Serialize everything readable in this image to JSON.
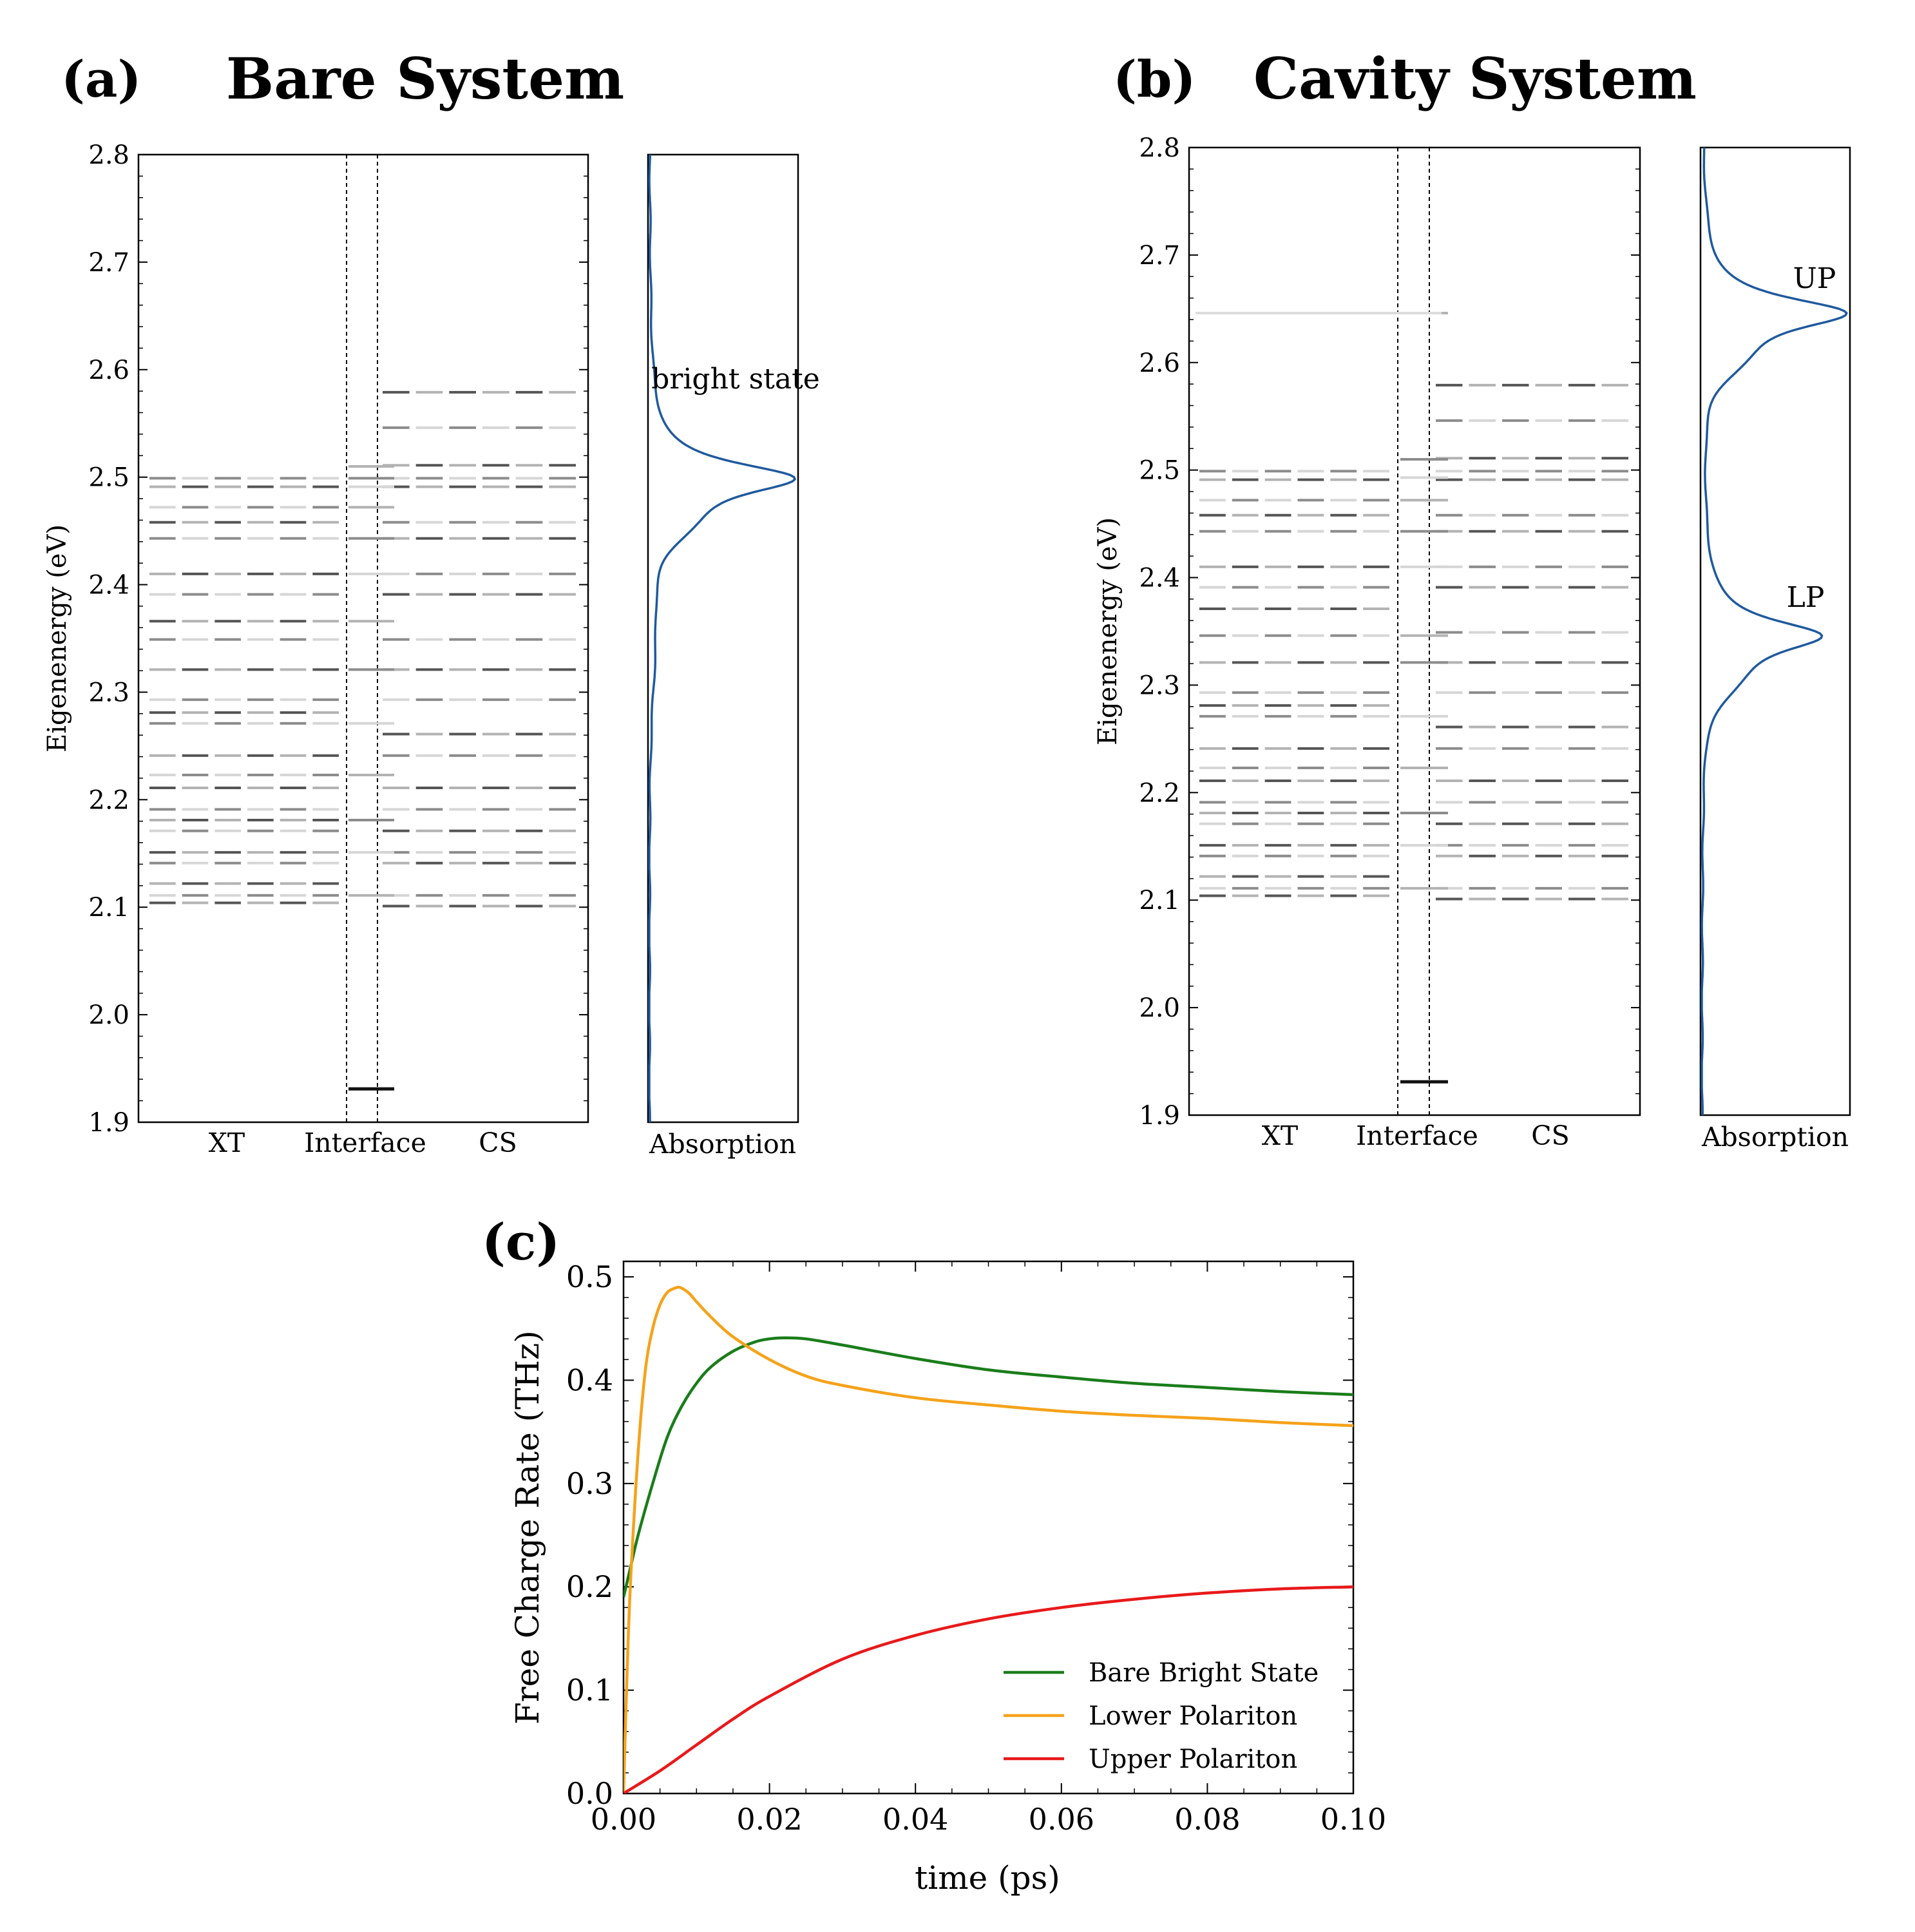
{
  "chart_data": [
    {
      "panel": "(a)",
      "title": "Bare System",
      "type": "scatter",
      "ylabel": "Eigenenergy (eV)",
      "ylim": [
        1.9,
        2.8
      ],
      "yticks": [
        "1.9",
        "2.0",
        "2.1",
        "2.2",
        "2.3",
        "2.4",
        "2.5",
        "2.6",
        "2.7",
        "2.8"
      ],
      "categories": [
        "XT",
        "Interface",
        "CS"
      ],
      "xt_levels": [
        2.104,
        2.111,
        2.122,
        2.141,
        2.151,
        2.171,
        2.181,
        2.191,
        2.211,
        2.223,
        2.241,
        2.271,
        2.281,
        2.293,
        2.321,
        2.349,
        2.366,
        2.391,
        2.41,
        2.443,
        2.458,
        2.472,
        2.491,
        2.499
      ],
      "interface_levels": [
        1.931,
        2.111,
        2.151,
        2.181,
        2.223,
        2.271,
        2.321,
        2.366,
        2.41,
        2.443,
        2.472,
        2.491,
        2.499,
        2.51
      ],
      "cs_levels": [
        2.101,
        2.111,
        2.141,
        2.151,
        2.171,
        2.191,
        2.211,
        2.241,
        2.261,
        2.293,
        2.321,
        2.349,
        2.391,
        2.41,
        2.443,
        2.458,
        2.491,
        2.499,
        2.511,
        2.546,
        2.579
      ],
      "absorption": {
        "xlabel": "Absorption",
        "peaks": [
          {
            "energy": 2.499,
            "height": 1.0,
            "label": "bright state"
          }
        ]
      }
    },
    {
      "panel": "(b)",
      "title": "Cavity System",
      "type": "scatter",
      "ylabel": "Eigenenergy (eV)",
      "ylim": [
        1.9,
        2.8
      ],
      "yticks": [
        "1.9",
        "2.0",
        "2.1",
        "2.2",
        "2.3",
        "2.4",
        "2.5",
        "2.6",
        "2.7",
        "2.8"
      ],
      "categories": [
        "XT",
        "Interface",
        "CS"
      ],
      "xt_levels": [
        2.104,
        2.111,
        2.122,
        2.141,
        2.151,
        2.171,
        2.181,
        2.191,
        2.211,
        2.223,
        2.241,
        2.271,
        2.281,
        2.293,
        2.321,
        2.346,
        2.371,
        2.391,
        2.41,
        2.443,
        2.458,
        2.472,
        2.491,
        2.499,
        2.646
      ],
      "interface_levels": [
        1.931,
        2.111,
        2.151,
        2.181,
        2.223,
        2.271,
        2.321,
        2.346,
        2.41,
        2.443,
        2.472,
        2.493,
        2.51,
        2.646
      ],
      "cs_levels": [
        2.101,
        2.111,
        2.141,
        2.151,
        2.171,
        2.191,
        2.211,
        2.241,
        2.261,
        2.293,
        2.321,
        2.349,
        2.391,
        2.41,
        2.443,
        2.458,
        2.491,
        2.499,
        2.511,
        2.546,
        2.579
      ],
      "absorption": {
        "xlabel": "Absorption",
        "peaks": [
          {
            "energy": 2.646,
            "height": 1.0,
            "label": "UP"
          },
          {
            "energy": 2.346,
            "height": 0.8,
            "label": "LP"
          }
        ]
      }
    },
    {
      "panel": "(c)",
      "type": "line",
      "xlabel": "time (ps)",
      "ylabel": "Free Charge Rate (THz)",
      "xlim": [
        0.0,
        0.1
      ],
      "ylim": [
        0.0,
        0.515
      ],
      "xticks": [
        "0.00",
        "0.02",
        "0.04",
        "0.06",
        "0.08",
        "0.10"
      ],
      "yticks": [
        "0.0",
        "0.1",
        "0.2",
        "0.3",
        "0.4",
        "0.5"
      ],
      "legend_position": "bottom-right",
      "series": [
        {
          "name": "Bare Bright State",
          "color": "#1a7d1a",
          "x": [
            0.0,
            0.001,
            0.002,
            0.004,
            0.006,
            0.008,
            0.01,
            0.012,
            0.015,
            0.018,
            0.02,
            0.022,
            0.025,
            0.03,
            0.04,
            0.05,
            0.06,
            0.07,
            0.08,
            0.09,
            0.1
          ],
          "y": [
            0.19,
            0.22,
            0.25,
            0.3,
            0.345,
            0.375,
            0.397,
            0.413,
            0.428,
            0.437,
            0.44,
            0.441,
            0.44,
            0.434,
            0.421,
            0.41,
            0.403,
            0.397,
            0.393,
            0.389,
            0.386
          ]
        },
        {
          "name": "Lower Polariton",
          "color": "#f5a21a",
          "x": [
            0.0,
            0.0005,
            0.001,
            0.002,
            0.003,
            0.004,
            0.005,
            0.006,
            0.007,
            0.0075,
            0.008,
            0.009,
            0.01,
            0.012,
            0.015,
            0.02,
            0.025,
            0.03,
            0.04,
            0.05,
            0.06,
            0.07,
            0.08,
            0.09,
            0.1
          ],
          "y": [
            0.0,
            0.12,
            0.21,
            0.33,
            0.41,
            0.45,
            0.473,
            0.485,
            0.489,
            0.49,
            0.489,
            0.484,
            0.476,
            0.461,
            0.442,
            0.42,
            0.404,
            0.395,
            0.383,
            0.376,
            0.37,
            0.366,
            0.363,
            0.359,
            0.356
          ]
        },
        {
          "name": "Upper Polariton",
          "color": "#e8191a",
          "x": [
            0.0,
            0.005,
            0.01,
            0.015,
            0.02,
            0.03,
            0.04,
            0.05,
            0.06,
            0.07,
            0.08,
            0.09,
            0.1
          ],
          "y": [
            0.0,
            0.022,
            0.047,
            0.072,
            0.094,
            0.13,
            0.153,
            0.169,
            0.18,
            0.188,
            0.194,
            0.198,
            0.2
          ]
        }
      ]
    }
  ]
}
